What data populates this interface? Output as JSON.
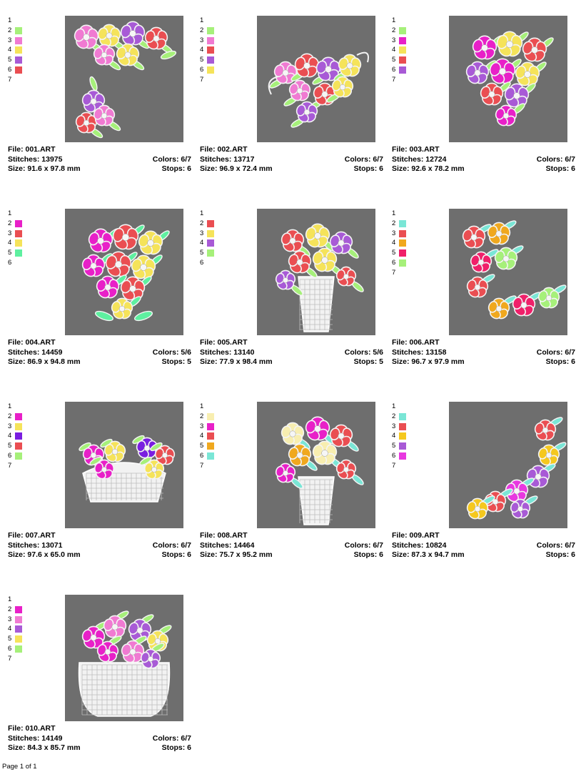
{
  "footer": "Page 1 of 1",
  "designs": [
    {
      "file": "File: 001.ART",
      "stitches": "Stitches: 13975",
      "colors": "Colors: 6/7",
      "size": "Size: 91.6 x 97.8 mm",
      "stops": "Stops: 6",
      "legend": [
        {
          "n": "1",
          "c": ""
        },
        {
          "n": "2",
          "c": "#a6f07a"
        },
        {
          "n": "3",
          "c": "#f07ad2"
        },
        {
          "n": "4",
          "c": "#f5e35a"
        },
        {
          "n": "5",
          "c": "#a85ad6"
        },
        {
          "n": "6",
          "c": "#ea4e52"
        },
        {
          "n": "7",
          "c": ""
        }
      ],
      "motif": "corner-tl"
    },
    {
      "file": "File: 002.ART",
      "stitches": "Stitches: 13717",
      "colors": "Colors: 6/7",
      "size": "Size: 96.9 x 72.4 mm",
      "stops": "Stops: 6",
      "legend": [
        {
          "n": "1",
          "c": ""
        },
        {
          "n": "2",
          "c": "#a6f07a"
        },
        {
          "n": "3",
          "c": "#f07ad2"
        },
        {
          "n": "4",
          "c": "#ea4e52"
        },
        {
          "n": "5",
          "c": "#a85ad6"
        },
        {
          "n": "6",
          "c": "#f5e35a"
        },
        {
          "n": "7",
          "c": ""
        }
      ],
      "motif": "spray"
    },
    {
      "file": "File: 003.ART",
      "stitches": "Stitches: 12724",
      "colors": "Colors: 6/7",
      "size": "Size: 92.6 x 78.2 mm",
      "stops": "Stops: 6",
      "legend": [
        {
          "n": "1",
          "c": ""
        },
        {
          "n": "2",
          "c": "#a6f07a"
        },
        {
          "n": "3",
          "c": "#e820c8"
        },
        {
          "n": "4",
          "c": "#f5e35a"
        },
        {
          "n": "5",
          "c": "#ea4e52"
        },
        {
          "n": "6",
          "c": "#a85ad6"
        },
        {
          "n": "7",
          "c": ""
        }
      ],
      "motif": "bouquet"
    },
    {
      "file": "File: 004.ART",
      "stitches": "Stitches: 14459",
      "colors": "Colors: 5/6",
      "size": "Size: 86.9 x 94.8 mm",
      "stops": "Stops: 5",
      "legend": [
        {
          "n": "1",
          "c": ""
        },
        {
          "n": "2",
          "c": "#e820c8"
        },
        {
          "n": "3",
          "c": "#ea4e52"
        },
        {
          "n": "4",
          "c": "#f5e35a"
        },
        {
          "n": "5",
          "c": "#5ef0a0"
        },
        {
          "n": "6",
          "c": ""
        }
      ],
      "motif": "bouquet-tall"
    },
    {
      "file": "File: 005.ART",
      "stitches": "Stitches: 13140",
      "colors": "Colors: 5/6",
      "size": "Size: 77.9 x 98.4 mm",
      "stops": "Stops: 5",
      "legend": [
        {
          "n": "1",
          "c": ""
        },
        {
          "n": "2",
          "c": "#ea4e52"
        },
        {
          "n": "3",
          "c": "#f5e35a"
        },
        {
          "n": "4",
          "c": "#a85ad6"
        },
        {
          "n": "5",
          "c": "#a6f07a"
        },
        {
          "n": "6",
          "c": ""
        }
      ],
      "motif": "vase-small"
    },
    {
      "file": "File: 006.ART",
      "stitches": "Stitches: 13158",
      "colors": "Colors: 6/7",
      "size": "Size: 96.7 x 97.9 mm",
      "stops": "Stops: 6",
      "legend": [
        {
          "n": "1",
          "c": ""
        },
        {
          "n": "2",
          "c": "#7ae6d6"
        },
        {
          "n": "3",
          "c": "#ea4e52"
        },
        {
          "n": "4",
          "c": "#f0a81e"
        },
        {
          "n": "5",
          "c": "#f0206a"
        },
        {
          "n": "6",
          "c": "#a6f07a"
        },
        {
          "n": "7",
          "c": ""
        }
      ],
      "motif": "corner-bl"
    },
    {
      "file": "File: 007.ART",
      "stitches": "Stitches: 13071",
      "colors": "Colors: 6/7",
      "size": "Size: 97.6 x 65.0 mm",
      "stops": "Stops: 6",
      "legend": [
        {
          "n": "1",
          "c": ""
        },
        {
          "n": "2",
          "c": "#e820c8"
        },
        {
          "n": "3",
          "c": "#f5e35a"
        },
        {
          "n": "4",
          "c": "#7a1ee0"
        },
        {
          "n": "5",
          "c": "#ea4e52"
        },
        {
          "n": "6",
          "c": "#a6f07a"
        },
        {
          "n": "7",
          "c": ""
        }
      ],
      "motif": "basket-low"
    },
    {
      "file": "File: 008.ART",
      "stitches": "Stitches: 14464",
      "colors": "Colors: 6/7",
      "size": "Size: 75.7 x 95.2 mm",
      "stops": "Stops: 6",
      "legend": [
        {
          "n": "1",
          "c": ""
        },
        {
          "n": "2",
          "c": "#f8eeb0"
        },
        {
          "n": "3",
          "c": "#e820c8"
        },
        {
          "n": "4",
          "c": "#ea4e52"
        },
        {
          "n": "5",
          "c": "#f0a81e"
        },
        {
          "n": "6",
          "c": "#7ae6d6"
        },
        {
          "n": "7",
          "c": ""
        }
      ],
      "motif": "vase-tall"
    },
    {
      "file": "File: 009.ART",
      "stitches": "Stitches: 10824",
      "colors": "Colors: 6/7",
      "size": "Size: 87.3 x 94.7 mm",
      "stops": "Stops: 6",
      "legend": [
        {
          "n": "1",
          "c": ""
        },
        {
          "n": "2",
          "c": "#7ae6d6"
        },
        {
          "n": "3",
          "c": "#ea4e52"
        },
        {
          "n": "4",
          "c": "#f5c81e"
        },
        {
          "n": "5",
          "c": "#a85ad6"
        },
        {
          "n": "6",
          "c": "#e838e0"
        },
        {
          "n": "7",
          "c": ""
        }
      ],
      "motif": "corner-br"
    },
    {
      "file": "File: 010.ART",
      "stitches": "Stitches: 14149",
      "colors": "Colors: 6/7",
      "size": "Size: 84.3 x 85.7 mm",
      "stops": "Stops: 6",
      "legend": [
        {
          "n": "1",
          "c": ""
        },
        {
          "n": "2",
          "c": "#e820c8"
        },
        {
          "n": "3",
          "c": "#f07ad2"
        },
        {
          "n": "4",
          "c": "#a85ad6"
        },
        {
          "n": "5",
          "c": "#f5e35a"
        },
        {
          "n": "6",
          "c": "#a6f07a"
        },
        {
          "n": "7",
          "c": ""
        }
      ],
      "motif": "basket-big"
    }
  ]
}
